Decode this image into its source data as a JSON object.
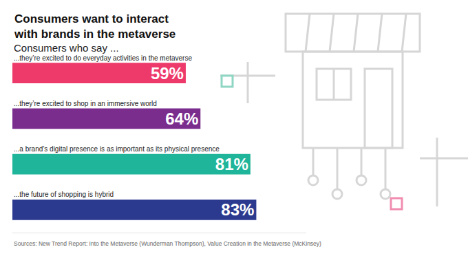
{
  "chart_data": {
    "type": "bar",
    "orientation": "horizontal",
    "title": "Consumers want to interact with brands in the metaverse",
    "subtitle": "Consumers who say ...",
    "categories": [
      "...they’re excited to do everyday activities in the metaverse",
      "...they’re excited to shop in an immersive world",
      "...a brand’s digital presence is as important as its physical presence",
      "...the future of shopping is hybrid"
    ],
    "values": [
      59,
      64,
      81,
      83
    ],
    "value_labels": [
      "59%",
      "64%",
      "81%",
      "83%"
    ],
    "colors": [
      "#ee3a6b",
      "#7b2d8e",
      "#1fb59a",
      "#2b3a8f"
    ],
    "data_labels": true,
    "tick_labels": false,
    "grid": false,
    "xlim": [
      0,
      100
    ],
    "xticks": [],
    "annotations": [
      "Sources: New Trend Report: Into the Metaverse (Wunderman Thompson), Value Creation in the Metaverse (McKinsey)"
    ]
  }
}
